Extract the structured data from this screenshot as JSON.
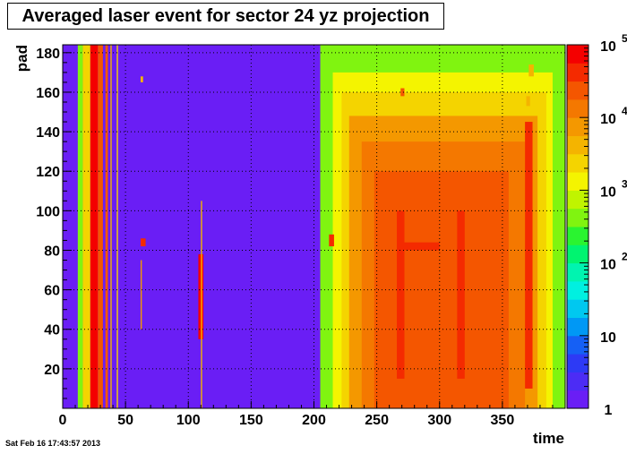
{
  "chart_data": {
    "type": "heatmap",
    "title": "Averaged laser event for sector 24 yz projection",
    "xlabel": "time",
    "ylabel": "pad",
    "xlim": [
      0,
      400
    ],
    "ylim": [
      0,
      184
    ],
    "x_ticks": [
      "0",
      "50",
      "100",
      "150",
      "200",
      "250",
      "300",
      "350"
    ],
    "y_ticks": [
      "20",
      "40",
      "60",
      "80",
      "100",
      "120",
      "140",
      "160",
      "180"
    ],
    "grid": true,
    "colorbar": {
      "scale": "log",
      "range": [
        1,
        100000
      ],
      "labels": [
        {
          "text": "1",
          "value": 1
        },
        {
          "text": "10",
          "value": 10
        },
        {
          "text": "10",
          "sup": "2",
          "value": 100
        },
        {
          "text": "10",
          "sup": "3",
          "value": 1000
        },
        {
          "text": "10",
          "sup": "4",
          "value": 10000
        },
        {
          "text": "10",
          "sup": "5",
          "value": 100000
        }
      ],
      "colors": [
        "#6a1ef5",
        "#4c2cf5",
        "#2d3af5",
        "#1560f5",
        "#0098f5",
        "#00c8f0",
        "#00f0e0",
        "#00f4b0",
        "#00f470",
        "#2af430",
        "#80f410",
        "#c0f400",
        "#f4f400",
        "#f4d400",
        "#f4b400",
        "#f49800",
        "#f47800",
        "#f45600",
        "#f42a00",
        "#f40000"
      ]
    },
    "regions": [
      {
        "x": [
          205,
          400
        ],
        "y": [
          0,
          184
        ],
        "value": 400
      },
      {
        "x": [
          215,
          390
        ],
        "y": [
          0,
          170
        ],
        "value": 1000
      },
      {
        "x": [
          222,
          385
        ],
        "y": [
          0,
          160
        ],
        "value": 3000
      },
      {
        "x": [
          228,
          378
        ],
        "y": [
          0,
          148
        ],
        "value": 8000
      },
      {
        "x": [
          238,
          368
        ],
        "y": [
          0,
          135
        ],
        "value": 12000
      },
      {
        "x": [
          248,
          355
        ],
        "y": [
          0,
          120
        ],
        "value": 18000
      },
      {
        "x": [
          255,
          345
        ],
        "y": [
          0,
          108
        ],
        "value": 22000
      }
    ],
    "streaks": [
      {
        "x": [
          12,
          16
        ],
        "y": [
          0,
          184
        ],
        "value": 500
      },
      {
        "x": [
          16,
          22
        ],
        "y": [
          0,
          184
        ],
        "value": 3000
      },
      {
        "x": [
          22,
          28
        ],
        "y": [
          0,
          184
        ],
        "value": 60000
      },
      {
        "x": [
          28,
          32
        ],
        "y": [
          0,
          184
        ],
        "value": 30000
      },
      {
        "x": [
          34,
          36
        ],
        "y": [
          0,
          184
        ],
        "value": 20000
      },
      {
        "x": [
          38,
          39
        ],
        "y": [
          0,
          184
        ],
        "value": 5000
      },
      {
        "x": [
          43,
          44
        ],
        "y": [
          0,
          184
        ],
        "value": 3000
      },
      {
        "x": [
          108,
          112
        ],
        "y": [
          35,
          78
        ],
        "value": 60000
      },
      {
        "x": [
          110,
          111
        ],
        "y": [
          0,
          105
        ],
        "value": 5000
      },
      {
        "x": [
          62,
          63
        ],
        "y": [
          40,
          75
        ],
        "value": 8000
      },
      {
        "x": [
          62,
          66
        ],
        "y": [
          82,
          86
        ],
        "value": 40000
      },
      {
        "x": [
          62,
          64
        ],
        "y": [
          165,
          168
        ],
        "value": 5000
      },
      {
        "x": [
          212,
          216
        ],
        "y": [
          82,
          88
        ],
        "value": 40000
      },
      {
        "x": [
          266,
          272
        ],
        "y": [
          15,
          100
        ],
        "value": 40000
      },
      {
        "x": [
          272,
          300
        ],
        "y": [
          80,
          84
        ],
        "value": 40000
      },
      {
        "x": [
          314,
          320
        ],
        "y": [
          15,
          100
        ],
        "value": 40000
      },
      {
        "x": [
          368,
          374
        ],
        "y": [
          10,
          145
        ],
        "value": 40000
      },
      {
        "x": [
          269,
          272
        ],
        "y": [
          158,
          162
        ],
        "value": 20000
      },
      {
        "x": [
          371,
          375
        ],
        "y": [
          168,
          174
        ],
        "value": 5000
      },
      {
        "x": [
          369,
          372
        ],
        "y": [
          153,
          158
        ],
        "value": 5000
      }
    ],
    "background_value": 1
  },
  "timestamp": "Sat Feb 16 17:43:57 2013"
}
